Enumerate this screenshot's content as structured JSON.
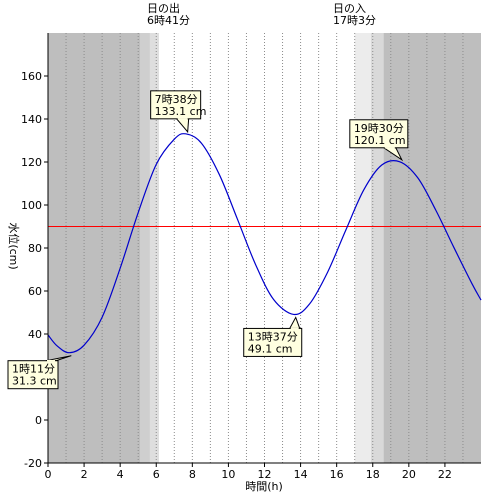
{
  "chart_data": {
    "type": "line",
    "xlabel": "時間(h)",
    "ylabel": "水位(cm)",
    "xlim": [
      0,
      24
    ],
    "ylim": [
      -20,
      180
    ],
    "x_ticks": [
      0,
      2,
      4,
      6,
      8,
      10,
      12,
      14,
      16,
      18,
      20,
      22
    ],
    "x_tick_labels": [
      "0",
      "2",
      "4",
      "6",
      "8",
      "10",
      "12",
      "14",
      "16",
      "18",
      "20",
      "22"
    ],
    "y_ticks": [
      -20,
      0,
      20,
      40,
      60,
      80,
      100,
      120,
      140,
      160
    ],
    "y_tick_labels": [
      "-20",
      "0",
      "20",
      "40",
      "60",
      "80",
      "100",
      "120",
      "140",
      "160"
    ],
    "grid": true,
    "series": [
      {
        "color": "#0000cc",
        "x": [
          0,
          0.5,
          1.18,
          2,
          3,
          4,
          5,
          6,
          7,
          7.63,
          8.5,
          9.5,
          10.5,
          11.5,
          12.5,
          13.62,
          14.5,
          15.5,
          16.5,
          17.5,
          18.5,
          19.5,
          20.5,
          21.5,
          22.5,
          23.5,
          24
        ],
        "y": [
          39.6,
          34.5,
          31.3,
          34.8,
          47.8,
          70.6,
          96.5,
          118.9,
          130.6,
          133.1,
          128.8,
          114.1,
          93.4,
          72.4,
          56.1,
          49.1,
          54.0,
          68.8,
          88.2,
          107.0,
          118.6,
          120.1,
          112.6,
          97.5,
          80.2,
          63.4,
          55.8
        ]
      }
    ],
    "reference_line": {
      "y": 90,
      "color": "#ff0000"
    },
    "night_shading": [
      {
        "from": 0,
        "to": 5.1,
        "color": "#bebebe"
      },
      {
        "from": 18.6,
        "to": 24,
        "color": "#bebebe"
      }
    ],
    "twilight_shading": [
      {
        "from": 5.1,
        "to": 5.65,
        "color": "#cfcfcf"
      },
      {
        "from": 5.65,
        "to": 6.15,
        "color": "#dedede"
      },
      {
        "from": 17.0,
        "to": 17.9,
        "color": "#ececec"
      },
      {
        "from": 17.9,
        "to": 18.6,
        "color": "#d9d9d9"
      }
    ],
    "sun_events": [
      {
        "title": "日の出",
        "time": "6時41分"
      },
      {
        "title": "日の入",
        "time": "17時3分"
      }
    ],
    "annotations": [
      {
        "x": 7.63,
        "y": 133.1,
        "time": "7時38分",
        "value": "133.1 cm",
        "kind": "high"
      },
      {
        "x": 19.5,
        "y": 120.1,
        "time": "19時30分",
        "value": "120.1 cm",
        "kind": "high"
      },
      {
        "x": 13.62,
        "y": 49.1,
        "time": "13時37分",
        "value": "49.1 cm",
        "kind": "low"
      },
      {
        "x": 1.18,
        "y": 31.3,
        "time": "1時11分",
        "value": "31.3 cm",
        "kind": "low"
      }
    ]
  }
}
